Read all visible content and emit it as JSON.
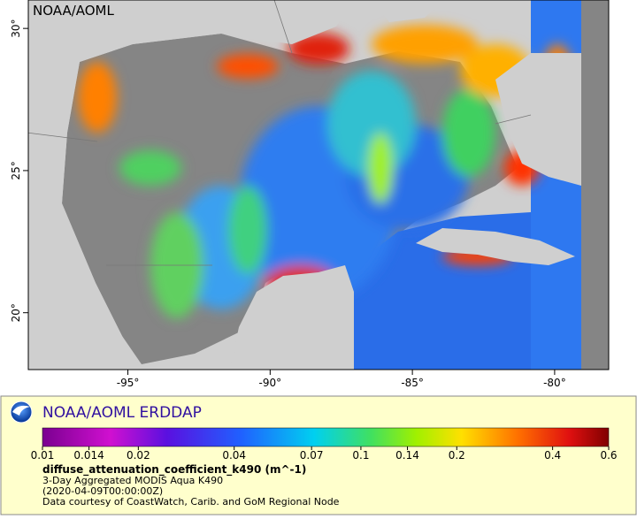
{
  "map": {
    "credit": "NOAA/AOML",
    "xlim": [
      -98.5,
      -78.1
    ],
    "ylim": [
      18,
      31
    ],
    "xticks": [
      {
        "value": -95,
        "label": "-95°"
      },
      {
        "value": -90,
        "label": "-90°"
      },
      {
        "value": -85,
        "label": "-85°"
      },
      {
        "value": -80,
        "label": "-80°"
      }
    ],
    "yticks": [
      {
        "value": 20,
        "label": "20°"
      },
      {
        "value": 25,
        "label": "25°"
      },
      {
        "value": 30,
        "label": "30°"
      }
    ]
  },
  "legend": {
    "title": "NOAA/AOML ERDDAP",
    "scale": "log",
    "cbar_lim": [
      0.01,
      0.6
    ],
    "cbar_ticks": [
      0.01,
      0.014,
      0.02,
      0.04,
      0.07,
      0.1,
      0.14,
      0.2,
      0.4,
      0.6
    ],
    "variable": "diffuse_attenuation_coefficient_k490 (m^-1)",
    "lines": [
      "3-Day Aggregated MODIS Aqua K490",
      "(2020-04-09T00:00:00Z)",
      "Data courtesy of CoastWatch, Carib. and GoM Regional Node"
    ]
  }
}
